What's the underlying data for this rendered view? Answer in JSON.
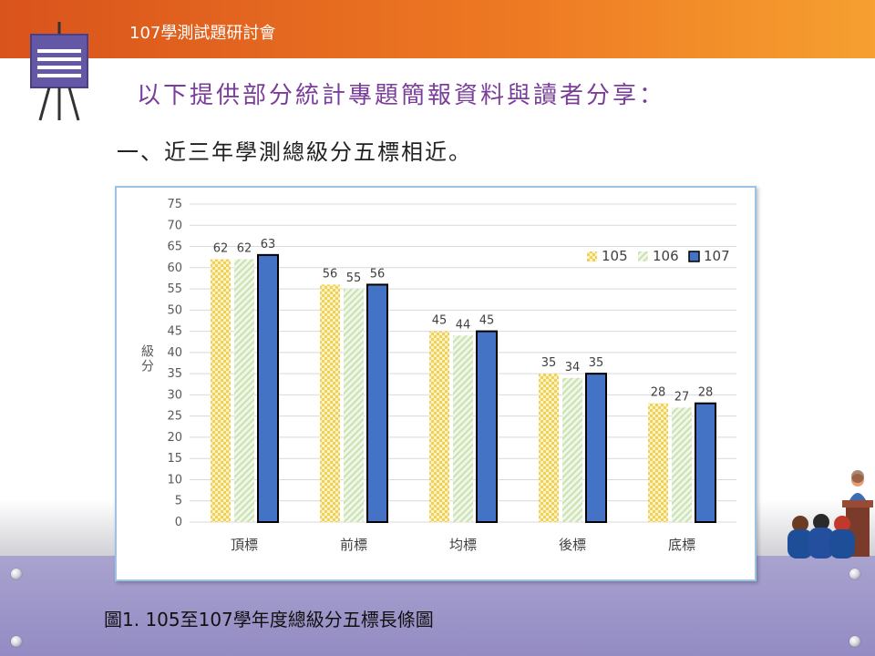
{
  "header": {
    "title": "107學測試題研討會"
  },
  "subtitle": "以下提供部分統計專題簡報資料與讀者分享：",
  "section_heading": "一、近三年學測總級分五標相近。",
  "caption": "圖1. 105至107學年度總級分五標長條圖",
  "colors": {
    "header_orange": "#e0641f",
    "subtitle_purple": "#7a3e9a",
    "series_105": "#f5d76e",
    "series_106": "#d9ebc8",
    "series_107": "#4472c4",
    "floor_purple": "#9a93c8"
  },
  "icons": {
    "easel": "presentation-board-icon",
    "podium": "lecture-audience-icon"
  },
  "chart_data": {
    "type": "bar",
    "categories": [
      "頂標",
      "前標",
      "均標",
      "後標",
      "底標"
    ],
    "series": [
      {
        "name": "105",
        "values": [
          62,
          56,
          45,
          35,
          28
        ],
        "color": "#f5d76e",
        "pattern": "checker"
      },
      {
        "name": "106",
        "values": [
          62,
          55,
          44,
          34,
          27
        ],
        "color": "#d9ebc8",
        "pattern": "diagonal"
      },
      {
        "name": "107",
        "values": [
          63,
          56,
          45,
          35,
          28
        ],
        "color": "#4472c4",
        "pattern": "solid"
      }
    ],
    "ylabel": "級分",
    "xlabel": "",
    "ylim": [
      0,
      75
    ],
    "yticks": [
      0,
      5,
      10,
      15,
      20,
      25,
      30,
      35,
      40,
      45,
      50,
      55,
      60,
      65,
      70,
      75
    ],
    "grid": true,
    "legend_position": "top-right"
  }
}
